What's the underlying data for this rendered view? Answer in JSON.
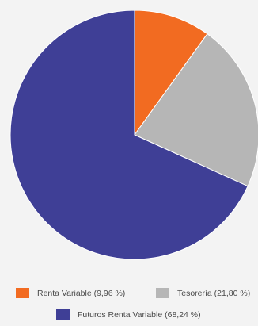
{
  "chart_data": {
    "type": "pie",
    "start": "top",
    "direction": "clockwise",
    "slices": [
      {
        "label": "Renta Variable (9,96 %)",
        "value": 9.96,
        "color": "#f26b21"
      },
      {
        "label": "Tesorería (21,80 %)",
        "value": 21.8,
        "color": "#b6b6b6"
      },
      {
        "label": "Futuros Renta Variable (68,24 %)",
        "value": 68.24,
        "color": "#3f3f96"
      }
    ],
    "legend": "bottom"
  }
}
